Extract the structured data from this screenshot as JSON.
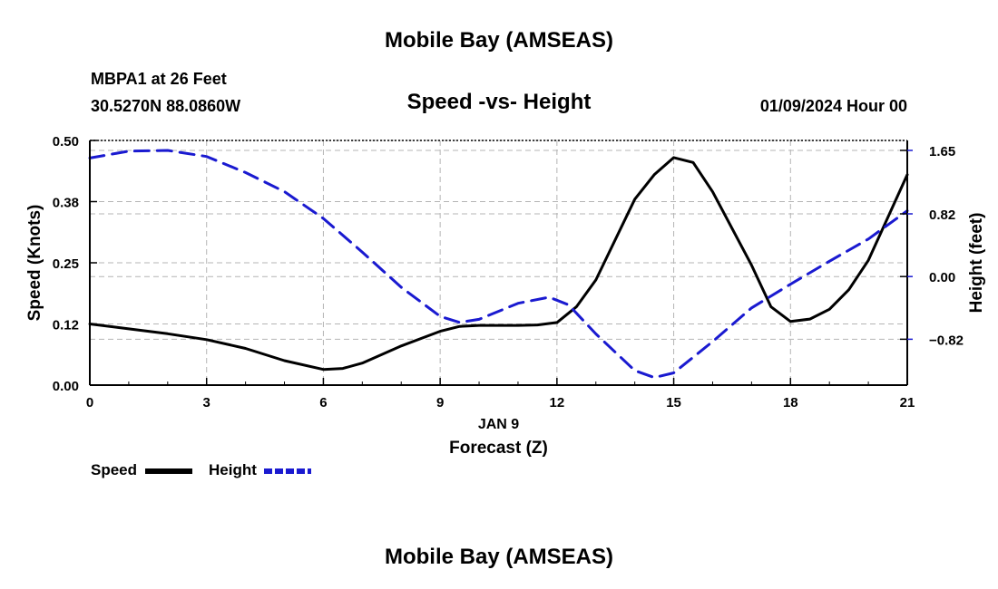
{
  "page": {
    "title_top": "Mobile Bay (AMSEAS)",
    "title_bottom": "Mobile Bay (AMSEAS)",
    "station": "MBPA1 at 26 Feet",
    "coordinates": "30.5270N  88.0860W",
    "datetime": "01/09/2024 Hour 00"
  },
  "legend": {
    "speed_label": "Speed",
    "height_label": "Height"
  },
  "colors": {
    "speed": "#000000",
    "height": "#1a1ad0",
    "grid": "#b4b4b4",
    "axis": "#000000"
  },
  "chart_data": {
    "type": "line",
    "title": "Speed -vs- Height",
    "xlabel": "Forecast (Z)",
    "xsublabel": "JAN 9",
    "ylabel": "Speed (Knots)",
    "y2label": "Height (feet)",
    "xlim": [
      0,
      21
    ],
    "ylim": [
      0,
      0.5
    ],
    "y2lim": [
      -1.42,
      1.78
    ],
    "x_ticks": [
      0,
      3,
      6,
      9,
      12,
      15,
      18,
      21
    ],
    "x_tick_labels": [
      "0",
      "3",
      "6",
      "9",
      "12",
      "15",
      "18",
      "21"
    ],
    "y_ticks": [
      0.0,
      0.125,
      0.25,
      0.375,
      0.5
    ],
    "y_tick_labels": [
      "0.00",
      "0.12",
      "0.25",
      "0.38",
      "0.50"
    ],
    "y2_ticks": [
      -0.82,
      0.0,
      0.82,
      1.65
    ],
    "y2_tick_labels": [
      "−0.82",
      "0.00",
      "0.82",
      "1.65"
    ],
    "grid": true,
    "legend_position": "bottom-left",
    "series": [
      {
        "name": "Speed",
        "axis": "left",
        "style": "solid",
        "x": [
          0,
          1,
          2,
          3,
          4,
          5,
          6,
          6.5,
          7,
          8,
          9,
          9.5,
          10,
          11,
          11.5,
          12,
          12.5,
          13,
          14,
          14.5,
          15,
          15.5,
          16,
          17,
          17.5,
          18,
          18.5,
          19,
          19.5,
          20,
          21
        ],
        "values": [
          0.125,
          0.115,
          0.105,
          0.093,
          0.075,
          0.05,
          0.032,
          0.034,
          0.045,
          0.08,
          0.11,
          0.12,
          0.122,
          0.122,
          0.123,
          0.128,
          0.16,
          0.215,
          0.38,
          0.43,
          0.465,
          0.455,
          0.395,
          0.245,
          0.16,
          0.13,
          0.135,
          0.155,
          0.195,
          0.255,
          0.43
        ]
      },
      {
        "name": "Height",
        "axis": "right",
        "style": "dashed",
        "x": [
          0,
          1,
          2,
          3,
          4,
          5,
          6,
          7,
          8,
          9,
          9.5,
          10,
          11,
          11.8,
          12.3,
          13,
          14,
          14.5,
          15,
          16,
          17,
          18,
          19,
          20,
          21
        ],
        "values": [
          1.55,
          1.64,
          1.65,
          1.57,
          1.36,
          1.11,
          0.76,
          0.32,
          -0.14,
          -0.52,
          -0.6,
          -0.56,
          -0.35,
          -0.27,
          -0.37,
          -0.75,
          -1.23,
          -1.32,
          -1.26,
          -0.85,
          -0.41,
          -0.1,
          0.2,
          0.49,
          0.86
        ]
      }
    ]
  }
}
